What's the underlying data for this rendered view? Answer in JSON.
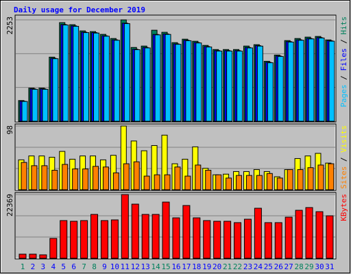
{
  "chart_data": [
    {
      "type": "bar",
      "title": "Daily usage for December 2019",
      "ylim": [
        0,
        2253
      ],
      "yticks": [
        2253
      ],
      "series": [
        {
          "name": "Hits",
          "color": "#00805c",
          "values": [
            460,
            736,
            736,
            1425,
            2192,
            2146,
            2008,
            1993,
            1931,
            1839,
            2253,
            1640,
            1671,
            2023,
            1977,
            1747,
            1824,
            1778,
            1686,
            1594,
            1594,
            1594,
            1671,
            1702,
            1333,
            1471,
            1793,
            1839,
            1870,
            1885,
            1808
          ]
        },
        {
          "name": "Files",
          "color": "#0000ff",
          "values": [
            445,
            720,
            720,
            1400,
            2150,
            2120,
            1980,
            1970,
            1900,
            1810,
            2180,
            1600,
            1640,
            1930,
            1940,
            1720,
            1800,
            1750,
            1660,
            1570,
            1570,
            1570,
            1640,
            1680,
            1310,
            1450,
            1770,
            1810,
            1840,
            1860,
            1790
          ]
        },
        {
          "name": "Pages",
          "color": "#00c0ff",
          "values": [
            440,
            710,
            710,
            1390,
            2140,
            2110,
            1970,
            1960,
            1890,
            1800,
            2170,
            1590,
            1630,
            1920,
            1930,
            1710,
            1790,
            1740,
            1650,
            1560,
            1560,
            1560,
            1630,
            1670,
            1300,
            1440,
            1760,
            1800,
            1830,
            1850,
            1780
          ]
        }
      ]
    },
    {
      "type": "bar",
      "ylim": [
        0,
        98
      ],
      "yticks": [
        98
      ],
      "series": [
        {
          "name": "Visits",
          "color": "#ffff00",
          "values": [
            46,
            52,
            52,
            50,
            59,
            47,
            52,
            52,
            46,
            53,
            98,
            75,
            60,
            68,
            84,
            40,
            47,
            66,
            33,
            23,
            24,
            28,
            28,
            31,
            28,
            20,
            31,
            48,
            52,
            56,
            41
          ]
        },
        {
          "name": "Sites",
          "color": "#ff8000",
          "values": [
            42,
            37,
            37,
            30,
            39,
            32,
            32,
            36,
            35,
            26,
            40,
            43,
            21,
            23,
            23,
            35,
            21,
            38,
            30,
            23,
            18,
            22,
            22,
            22,
            25,
            18,
            31,
            31,
            34,
            38,
            40
          ]
        }
      ]
    },
    {
      "type": "bar",
      "ylim": [
        0,
        22369
      ],
      "yticks": [
        22369
      ],
      "categories": [
        "1",
        "2",
        "3",
        "4",
        "5",
        "6",
        "7",
        "8",
        "9",
        "10",
        "11",
        "12",
        "13",
        "14",
        "15",
        "16",
        "17",
        "18",
        "19",
        "20",
        "21",
        "22",
        "23",
        "24",
        "25",
        "26",
        "27",
        "28",
        "29",
        "30",
        "31"
      ],
      "category_colors": [
        "#00805c",
        "#0000ff",
        "#0000ff",
        "#0000ff",
        "#0000ff",
        "#0000ff",
        "#00805c",
        "#00805c",
        "#0000ff",
        "#0000ff",
        "#0000ff",
        "#0000ff",
        "#0000ff",
        "#00805c",
        "#00805c",
        "#0000ff",
        "#0000ff",
        "#0000ff",
        "#0000ff",
        "#0000ff",
        "#00805c",
        "#00805c",
        "#0000ff",
        "#0000ff",
        "#0000ff",
        "#0000ff",
        "#0000ff",
        "#00805c",
        "#00805c",
        "#0000ff",
        "#0000ff"
      ],
      "series": [
        {
          "name": "KBytes",
          "color": "#ff0000",
          "values": [
            1443,
            1443,
            1203,
            6975,
            13229,
            12989,
            13229,
            15394,
            13229,
            13470,
            22369,
            19002,
            15394,
            15394,
            19723,
            14191,
            18521,
            14191,
            13229,
            12989,
            12989,
            12508,
            13710,
            17559,
            12508,
            12508,
            14432,
            16838,
            17800,
            16356,
            14913
          ]
        }
      ]
    }
  ]
}
